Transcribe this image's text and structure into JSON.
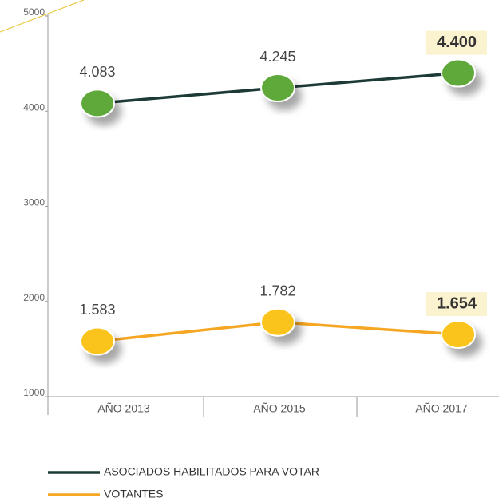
{
  "chart_data": {
    "type": "line",
    "categories": [
      "AÑO 2013",
      "AÑO 2015",
      "AÑO 2017"
    ],
    "series": [
      {
        "name": "ASOCIADOS HABILITADOS PARA VOTAR",
        "color": "#1c3a36",
        "marker_color": "#5ea93a",
        "values": [
          4083,
          4245,
          4400
        ],
        "value_labels": [
          "4.083",
          "4.245",
          "4.400"
        ]
      },
      {
        "name": "VOTANTES",
        "color": "#f5a623",
        "marker_color": "#fbc41a",
        "values": [
          1583,
          1782,
          1654
        ],
        "value_labels": [
          "1.583",
          "1.782",
          "1.654"
        ]
      }
    ],
    "ylim": [
      1000,
      5000
    ],
    "yticks": [
      1000,
      2000,
      3000,
      4000,
      5000
    ]
  }
}
